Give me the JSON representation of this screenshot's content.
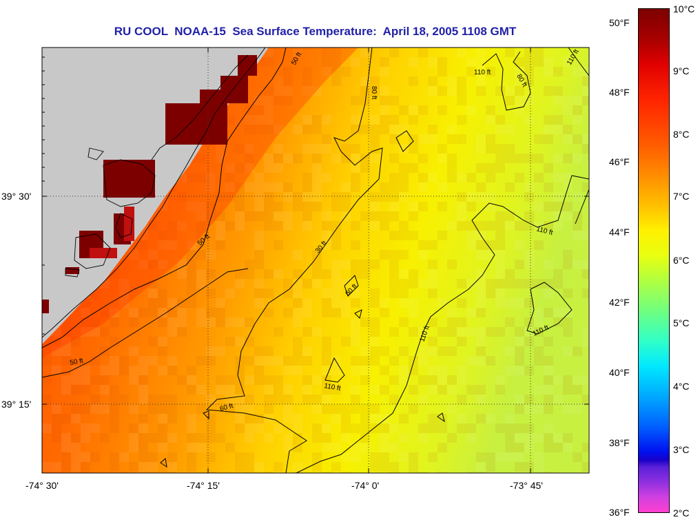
{
  "title": "RU COOL  NOAA-15  Sea Surface Temperature:  April 18, 2005 1108 GMT",
  "lat_labels": [
    "39° 30'",
    "39° 15'"
  ],
  "lon_labels": [
    "-74° 30'",
    "-74° 15'",
    "-74° 0'",
    "-73° 45'"
  ],
  "colorbar": {
    "fahrenheit": [
      "50°F",
      "48°F",
      "46°F",
      "44°F",
      "42°F",
      "40°F",
      "38°F",
      "36°F"
    ],
    "celsius": [
      "10°C",
      "9°C",
      "8°C",
      "7°C",
      "6°C",
      "5°C",
      "4°C",
      "3°C",
      "2°C"
    ],
    "colors": [
      "#7d0000",
      "#e00000",
      "#ff8c00",
      "#fff000",
      "#70ff80",
      "#00e8ff",
      "#0060ff",
      "#9030e0",
      "#ff40d0"
    ]
  },
  "contour_labels": [
    "50 ft",
    "80 ft",
    "110 ft",
    "80 ft",
    "110 ft",
    "110 ft",
    "30 ft",
    "50 ft",
    "60 ft",
    "110 ft",
    "110 ft",
    "50 ft",
    "110 ft",
    "60 ft"
  ],
  "land_color": "#c8c8c8"
}
